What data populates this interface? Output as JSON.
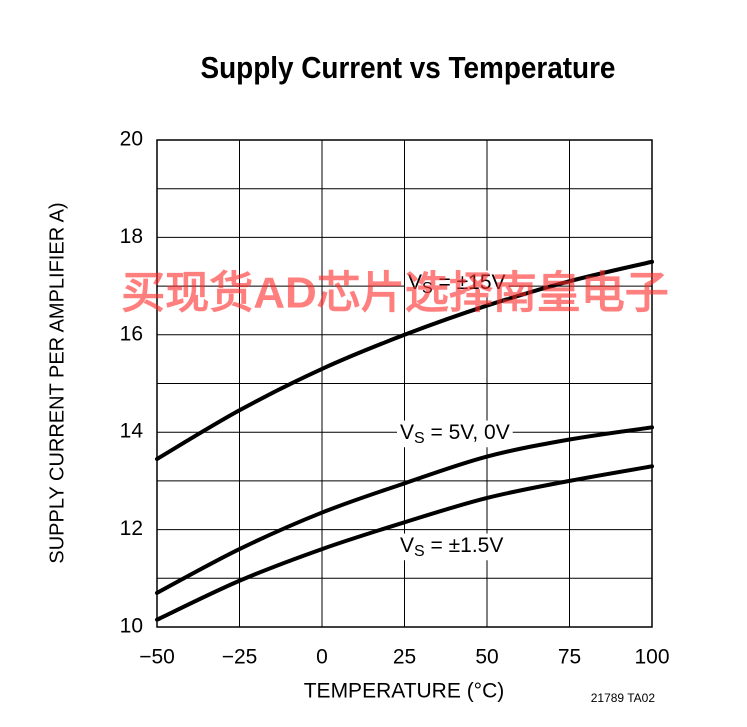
{
  "chart_data": {
    "type": "line",
    "title": "Supply Current vs Temperature",
    "x_label": "TEMPERATURE (°C)",
    "y_label": "SUPPLY CURRENT PER AMPLIFIER A)",
    "footnote": "21789 TA02",
    "watermark": "买现货AD芯片选择南皇电子",
    "x": [
      -50,
      -25,
      0,
      25,
      50,
      75,
      100
    ],
    "xlim": [
      -50,
      100
    ],
    "xticks": [
      {
        "value": -50,
        "label": "−50"
      },
      {
        "value": -25,
        "label": "−25"
      },
      0,
      25,
      50,
      75,
      100
    ],
    "ylim": [
      10,
      20
    ],
    "yticks": [
      10,
      12,
      14,
      16,
      18,
      20
    ],
    "y_minor_grid": [
      11,
      13,
      15,
      17,
      19
    ],
    "grid": true,
    "series": [
      {
        "label": {
          "main": "V",
          "sub": "S",
          "rest": " = ±15V"
        },
        "color": "#000000",
        "values": [
          13.45,
          14.45,
          15.3,
          16.0,
          16.6,
          17.1,
          17.5
        ]
      },
      {
        "label": {
          "main": "V",
          "sub": "S",
          "rest": " = 5V, 0V"
        },
        "color": "#000000",
        "values": [
          10.7,
          11.6,
          12.35,
          12.95,
          13.5,
          13.85,
          14.1
        ]
      },
      {
        "label": {
          "main": "V",
          "sub": "S",
          "rest": " = ±1.5V"
        },
        "color": "#000000",
        "values": [
          10.15,
          10.95,
          11.6,
          12.15,
          12.65,
          13.0,
          13.3
        ]
      }
    ]
  }
}
